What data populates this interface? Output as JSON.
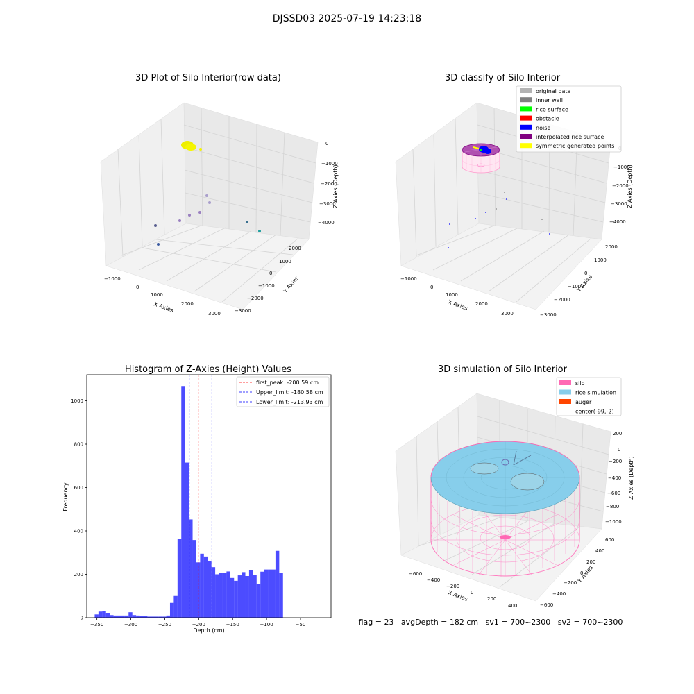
{
  "suptitle": "DJSSD03 2025-07-19 14:23:18",
  "panels": {
    "raw": {
      "title": "3D Plot of Silo Interior(row data)",
      "xlabel": "X Axies",
      "ylabel": "Y Axies",
      "zlabel": "Z Axies (Depth)",
      "xticks": [
        "−1000",
        "0",
        "1000",
        "2000",
        "3000"
      ],
      "yticks": [
        "2000",
        "1000",
        "0",
        "−1000",
        "−2000",
        "−3000"
      ],
      "zticks": [
        "0",
        "−1000",
        "−2000",
        "−3000",
        "−4000"
      ]
    },
    "classify": {
      "title": "3D classify of Silo Interior",
      "xlabel": "X Axies",
      "ylabel": "Y Axies",
      "zlabel": "Z Axies (Depth)",
      "xticks": [
        "−1000",
        "0",
        "1000",
        "2000",
        "3000"
      ],
      "yticks": [
        "2000",
        "1000",
        "0",
        "−1000",
        "−2000",
        "−3000"
      ],
      "zticks": [
        "0",
        "−1000",
        "−2000",
        "−3000",
        "−4000"
      ],
      "legend": [
        {
          "label": "original data",
          "color": "#b3b3b3"
        },
        {
          "label": "inner wall",
          "color": "#808080"
        },
        {
          "label": "rice surface",
          "color": "#00ff00"
        },
        {
          "label": "obstacle",
          "color": "#ff0000"
        },
        {
          "label": "noise",
          "color": "#0000ff"
        },
        {
          "label": "interpolated rice surface",
          "color": "#800080"
        },
        {
          "label": "symmetric generated points",
          "color": "#ffff00"
        }
      ]
    },
    "simulation": {
      "title": "3D simulation of Silo Interior",
      "xlabel": "X Axies",
      "ylabel": "Y Axies",
      "zlabel": "Z Axies (Depth)",
      "xticks": [
        "−600",
        "−400",
        "−200",
        "0",
        "200",
        "400"
      ],
      "yticks": [
        "600",
        "400",
        "200",
        "0",
        "−200",
        "−400",
        "−600"
      ],
      "zticks": [
        "200",
        "0",
        "−200",
        "−400",
        "−600",
        "−800",
        "−1000"
      ],
      "legend": [
        {
          "label": "silo",
          "color": "#ff69b4"
        },
        {
          "label": "rice simulation",
          "color": "#87ceeb"
        },
        {
          "label": "auger",
          "color": "#ff4500"
        },
        {
          "label": "center(-99,-2)",
          "color": "none"
        }
      ],
      "status": "flag = 23   avgDepth = 182 cm   sv1 = 700~2300   sv2 = 700~2300"
    }
  },
  "chart_data": {
    "type": "bar",
    "title": "Histogram of Z-Axies (Height) Values",
    "xlabel": "Depth (cm)",
    "ylabel": "Frequency",
    "xlim": [
      -365,
      -5
    ],
    "ylim": [
      0,
      1120
    ],
    "xticks": [
      -350,
      -300,
      -250,
      -200,
      -150,
      -100,
      -50
    ],
    "xtick_labels": [
      "−350",
      "−300",
      "−250",
      "−200",
      "−150",
      "−100",
      "−50"
    ],
    "yticks": [
      0,
      200,
      400,
      600,
      800,
      1000
    ],
    "bar_color": "#0000ff",
    "bins_start": -353.3,
    "bin_width": 5.55,
    "values": [
      15,
      28,
      32,
      20,
      12,
      10,
      10,
      10,
      10,
      25,
      12,
      10,
      8,
      8,
      5,
      5,
      5,
      5,
      5,
      10,
      68,
      100,
      362,
      1068,
      715,
      453,
      358,
      255,
      295,
      282,
      262,
      233,
      200,
      207,
      205,
      213,
      183,
      170,
      195,
      210,
      192,
      218,
      197,
      155,
      212,
      222,
      222,
      222,
      308,
      205
    ],
    "lines": [
      {
        "label": "first_peak: -200.59 cm",
        "x": -200.59,
        "color": "#ff0000"
      },
      {
        "label": "Upper_limit: -180.58 cm",
        "x": -180.58,
        "color": "#0000ff"
      },
      {
        "label": "Lower_limit: -213.93 cm",
        "x": -213.93,
        "color": "#0000ff"
      }
    ],
    "legend_position": "top-right"
  }
}
